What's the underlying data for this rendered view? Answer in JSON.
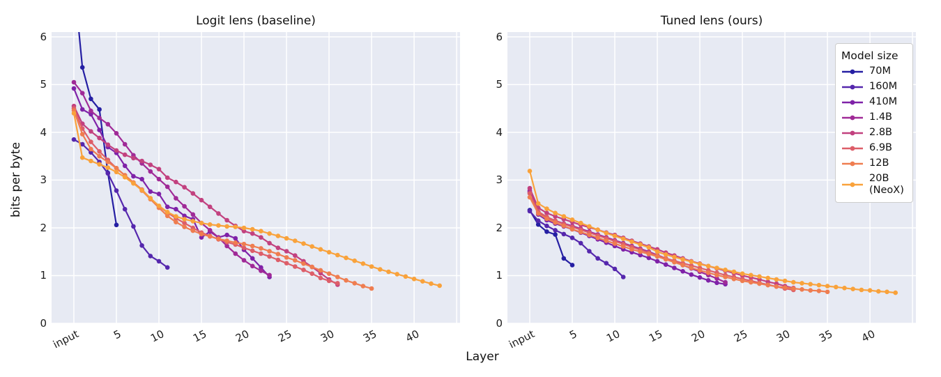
{
  "chart_data": {
    "type": "line",
    "xlabel": "Layer",
    "ylabel": "bits per byte",
    "xlim": [
      -2.62,
      45.4
    ],
    "ylim": [
      0,
      6.1
    ],
    "grid": true,
    "plot_bg_color": "#e7eaf3",
    "grid_color": "#ffffff",
    "yticks": [
      0,
      1,
      2,
      3,
      4,
      5,
      6
    ],
    "xticks": [
      {
        "label": "input",
        "layer": 0
      },
      {
        "label": "5",
        "layer": 5
      },
      {
        "label": "10",
        "layer": 10
      },
      {
        "label": "15",
        "layer": 15
      },
      {
        "label": "20",
        "layer": 20
      },
      {
        "label": "25",
        "layer": 25
      },
      {
        "label": "30",
        "layer": 30
      },
      {
        "label": "35",
        "layer": 35
      },
      {
        "label": "40",
        "layer": 40
      }
    ],
    "grid_layers": [
      0,
      5,
      10,
      15,
      20,
      25,
      30,
      35,
      40,
      45
    ],
    "legend": {
      "title": "Model size",
      "position": "upper right",
      "entries": [
        {
          "label": "70M",
          "color": "#251fa3"
        },
        {
          "label": "160M",
          "color": "#5527ad"
        },
        {
          "label": "410M",
          "color": "#7f22a8"
        },
        {
          "label": "1.4B",
          "color": "#a02a97"
        },
        {
          "label": "2.8B",
          "color": "#c2417f"
        },
        {
          "label": "6.9B",
          "color": "#dd5e69"
        },
        {
          "label": "12B",
          "color": "#ef7d50"
        },
        {
          "label": "20B\n(NeoX)",
          "color": "#f9a23b"
        }
      ]
    },
    "x_note": "x = layer index, 0 = input embedding; each series has one value per layer",
    "panels": [
      {
        "title": "Logit lens (baseline)",
        "series": [
          {
            "name": "70M",
            "color": "#251fa3",
            "y": [
              7.2,
              5.36,
              4.7,
              4.48,
              3.15,
              2.06
            ]
          },
          {
            "name": "160M",
            "color": "#5527ad",
            "y": [
              3.85,
              3.75,
              3.58,
              3.38,
              3.14,
              2.78,
              2.39,
              2.03,
              1.63,
              1.41,
              1.3,
              1.17
            ]
          },
          {
            "name": "410M",
            "color": "#7f22a8",
            "y": [
              4.92,
              4.48,
              4.38,
              4.05,
              3.69,
              3.57,
              3.3,
              3.08,
              3.02,
              2.76,
              2.71,
              2.44,
              2.39,
              2.25,
              2.18,
              1.8,
              1.92,
              1.8,
              1.85,
              1.78,
              1.54,
              1.36,
              1.17,
              0.97
            ]
          },
          {
            "name": "1.4B",
            "color": "#a02a97",
            "y": [
              5.05,
              4.82,
              4.45,
              4.3,
              4.17,
              3.98,
              3.75,
              3.52,
              3.35,
              3.18,
              3.02,
              2.86,
              2.62,
              2.45,
              2.28,
              2.1,
              1.95,
              1.8,
              1.62,
              1.46,
              1.32,
              1.2,
              1.1,
              1.01
            ]
          },
          {
            "name": "2.8B",
            "color": "#c2417f",
            "y": [
              4.55,
              4.18,
              4.02,
              3.88,
              3.74,
              3.62,
              3.53,
              3.46,
              3.4,
              3.32,
              3.23,
              3.05,
              2.96,
              2.85,
              2.72,
              2.58,
              2.44,
              2.3,
              2.16,
              2.04,
              1.93,
              1.88,
              1.8,
              1.68,
              1.58,
              1.51,
              1.42,
              1.3,
              1.18,
              1.05,
              0.92,
              0.81
            ]
          },
          {
            "name": "6.9B",
            "color": "#dd5e69",
            "y": [
              4.5,
              4.08,
              3.8,
              3.6,
              3.42,
              3.25,
              3.1,
              2.95,
              2.8,
              2.62,
              2.45,
              2.32,
              2.2,
              2.1,
              2.0,
              1.9,
              1.83,
              1.76,
              1.7,
              1.65,
              1.58,
              1.52,
              1.46,
              1.4,
              1.33,
              1.26,
              1.19,
              1.12,
              1.04,
              0.95,
              0.89,
              0.84
            ]
          },
          {
            "name": "12B",
            "color": "#ef7d50",
            "y": [
              4.46,
              3.96,
              3.65,
              3.5,
              3.38,
              3.25,
              3.1,
              2.95,
              2.78,
              2.6,
              2.42,
              2.25,
              2.12,
              2.02,
              1.94,
              1.87,
              1.82,
              1.77,
              1.73,
              1.69,
              1.66,
              1.62,
              1.57,
              1.51,
              1.45,
              1.38,
              1.32,
              1.25,
              1.18,
              1.11,
              1.04,
              0.97,
              0.9,
              0.84,
              0.78,
              0.73
            ]
          },
          {
            "name": "20B (NeoX)",
            "color": "#f9a23b",
            "y": [
              4.4,
              3.47,
              3.4,
              3.33,
              3.26,
              3.17,
              3.06,
              2.93,
              2.79,
              2.62,
              2.46,
              2.33,
              2.24,
              2.18,
              2.14,
              2.1,
              2.07,
              2.05,
              2.03,
              2.02,
              2.0,
              1.97,
              1.93,
              1.88,
              1.83,
              1.78,
              1.73,
              1.67,
              1.61,
              1.55,
              1.49,
              1.43,
              1.37,
              1.31,
              1.25,
              1.19,
              1.13,
              1.08,
              1.03,
              0.98,
              0.93,
              0.88,
              0.83,
              0.79
            ]
          }
        ]
      },
      {
        "title": "Tuned lens (ours)",
        "series": [
          {
            "name": "70M",
            "color": "#251fa3",
            "y": [
              2.37,
              2.07,
              1.92,
              1.86,
              1.36,
              1.22
            ]
          },
          {
            "name": "160M",
            "color": "#5527ad",
            "y": [
              2.35,
              2.15,
              2.04,
              1.95,
              1.87,
              1.79,
              1.68,
              1.51,
              1.36,
              1.26,
              1.14,
              0.97
            ]
          },
          {
            "name": "410M",
            "color": "#7f22a8",
            "y": [
              2.75,
              2.28,
              2.16,
              2.09,
              2.03,
              1.97,
              1.9,
              1.83,
              1.76,
              1.69,
              1.62,
              1.55,
              1.49,
              1.43,
              1.37,
              1.3,
              1.23,
              1.16,
              1.09,
              1.02,
              0.96,
              0.9,
              0.85,
              0.82
            ]
          },
          {
            "name": "1.4B",
            "color": "#a02a97",
            "y": [
              2.78,
              2.33,
              2.22,
              2.15,
              2.09,
              2.04,
              1.98,
              1.92,
              1.86,
              1.8,
              1.74,
              1.68,
              1.62,
              1.56,
              1.5,
              1.43,
              1.36,
              1.29,
              1.22,
              1.15,
              1.08,
              1.01,
              0.94,
              0.86
            ]
          },
          {
            "name": "2.8B",
            "color": "#c2417f",
            "y": [
              2.83,
              2.42,
              2.31,
              2.24,
              2.18,
              2.12,
              2.06,
              2.01,
              1.96,
              1.9,
              1.85,
              1.79,
              1.73,
              1.67,
              1.61,
              1.55,
              1.48,
              1.42,
              1.36,
              1.3,
              1.25,
              1.2,
              1.15,
              1.1,
              1.05,
              1.0,
              0.96,
              0.92,
              0.87,
              0.83,
              0.78,
              0.74
            ]
          },
          {
            "name": "6.9B",
            "color": "#dd5e69",
            "y": [
              2.72,
              2.34,
              2.23,
              2.15,
              2.08,
              2.02,
              1.96,
              1.9,
              1.84,
              1.78,
              1.72,
              1.66,
              1.6,
              1.54,
              1.48,
              1.42,
              1.36,
              1.31,
              1.26,
              1.21,
              1.16,
              1.11,
              1.06,
              1.01,
              0.97,
              0.93,
              0.89,
              0.85,
              0.81,
              0.77,
              0.73,
              0.7
            ]
          },
          {
            "name": "12B",
            "color": "#ef7d50",
            "y": [
              2.64,
              2.3,
              2.19,
              2.11,
              2.04,
              1.97,
              1.91,
              1.85,
              1.79,
              1.73,
              1.67,
              1.61,
              1.55,
              1.5,
              1.45,
              1.4,
              1.34,
              1.28,
              1.22,
              1.16,
              1.11,
              1.06,
              1.01,
              0.97,
              0.93,
              0.89,
              0.86,
              0.83,
              0.8,
              0.77,
              0.75,
              0.73,
              0.71,
              0.69,
              0.68,
              0.66
            ]
          },
          {
            "name": "20B (NeoX)",
            "color": "#f9a23b",
            "y": [
              3.19,
              2.51,
              2.4,
              2.31,
              2.24,
              2.17,
              2.1,
              2.03,
              1.96,
              1.89,
              1.83,
              1.77,
              1.71,
              1.65,
              1.59,
              1.5,
              1.44,
              1.39,
              1.34,
              1.29,
              1.24,
              1.2,
              1.16,
              1.12,
              1.08,
              1.04,
              1.01,
              0.98,
              0.95,
              0.92,
              0.89,
              0.86,
              0.84,
              0.82,
              0.8,
              0.78,
              0.76,
              0.74,
              0.72,
              0.7,
              0.69,
              0.67,
              0.66,
              0.64
            ]
          }
        ]
      }
    ]
  }
}
